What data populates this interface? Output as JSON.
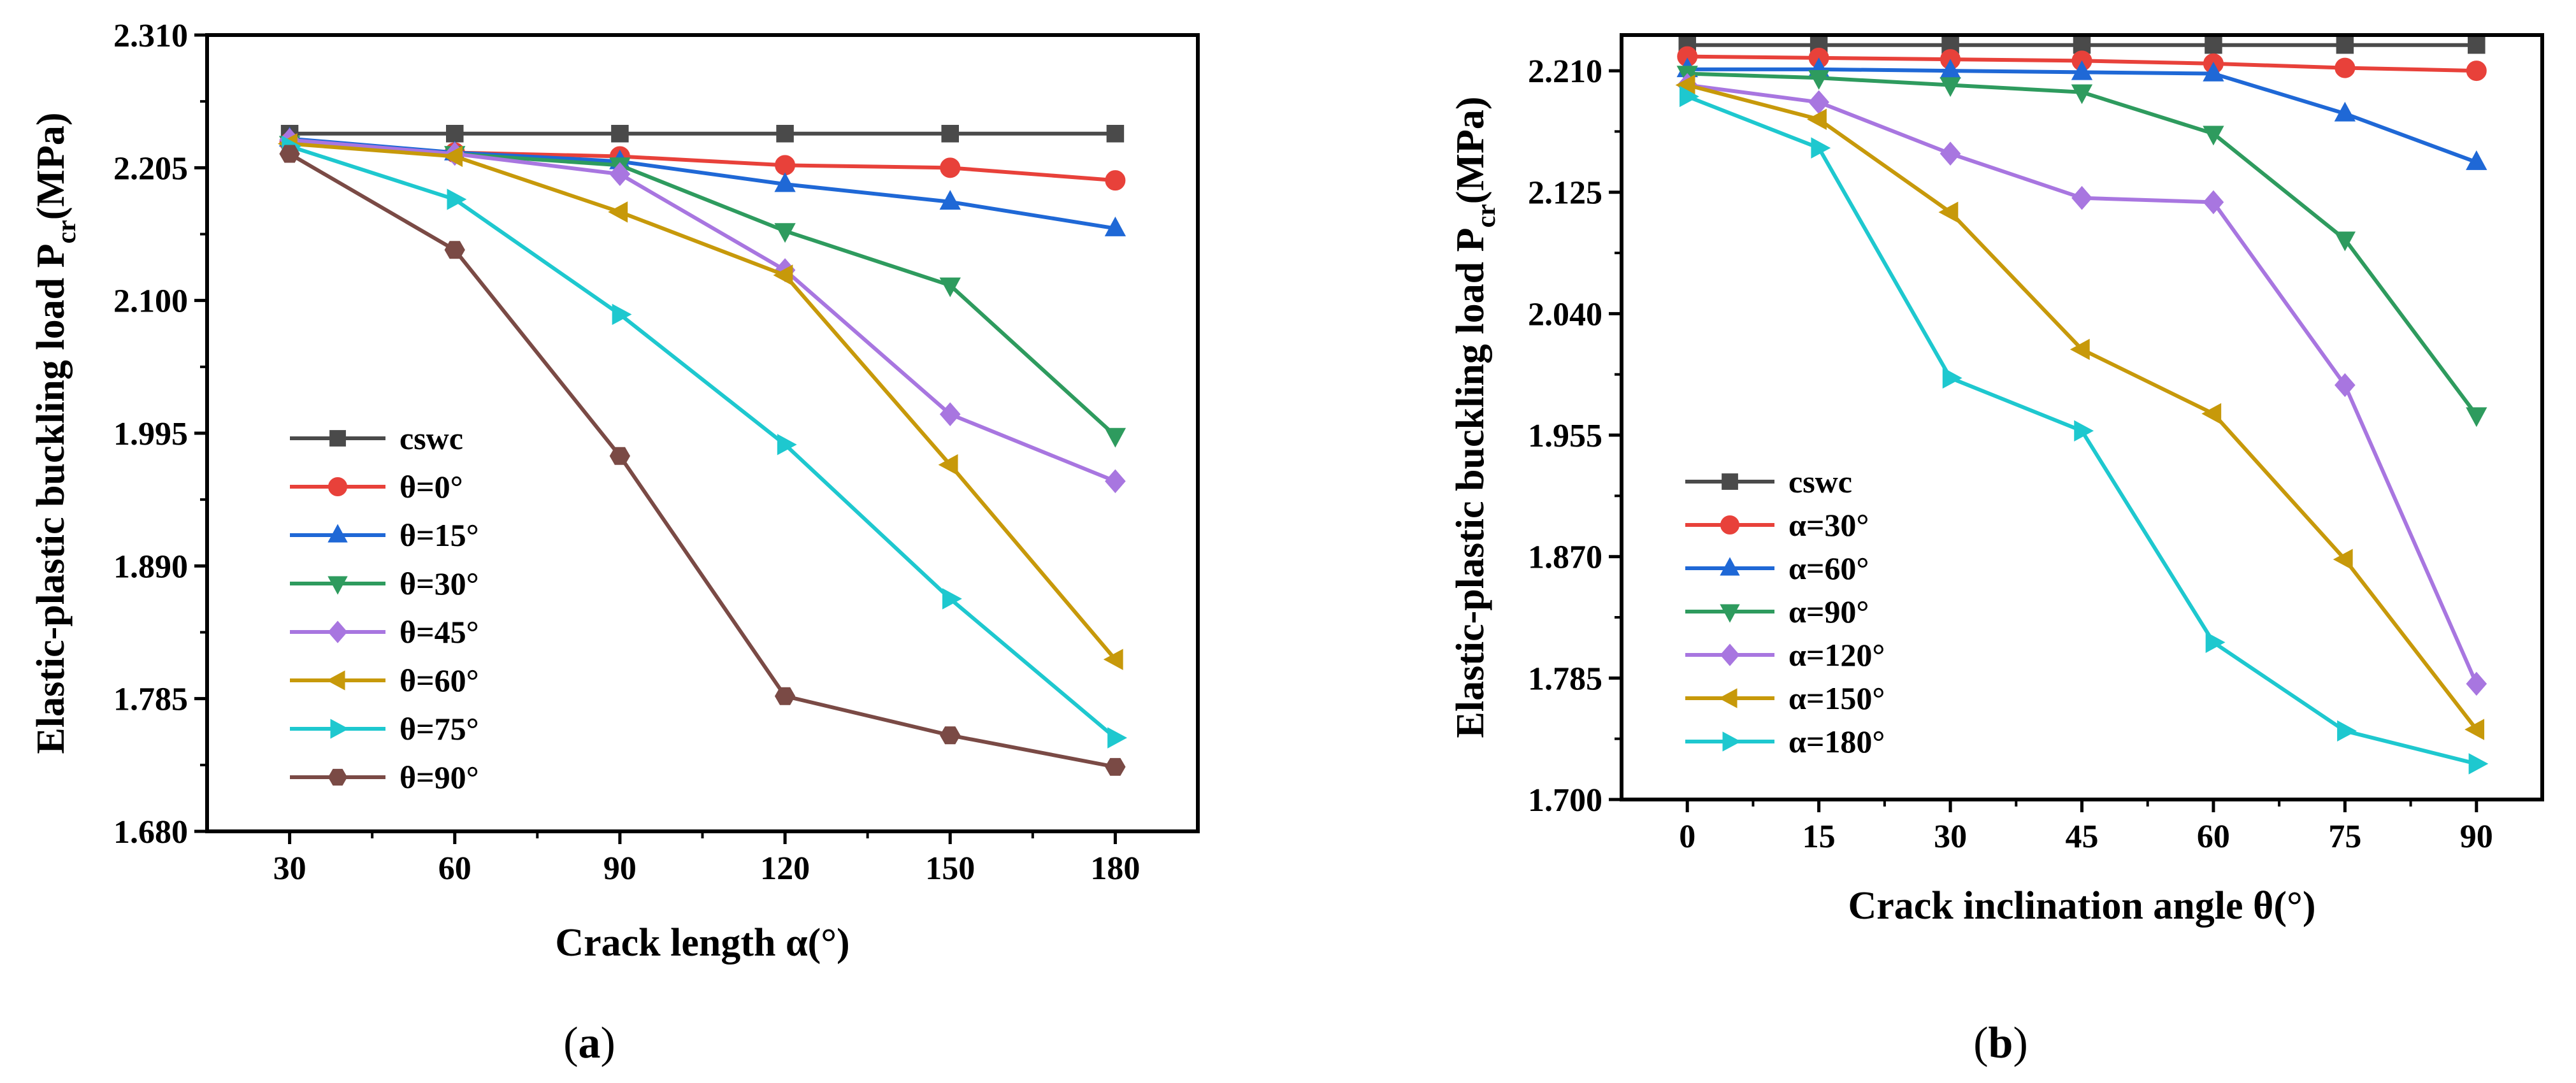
{
  "chart_data": [
    {
      "type": "line",
      "panel_label_prefix": "(",
      "panel_label_letter": "a",
      "panel_label_suffix": ")",
      "xlabel": "Crack length α(°)",
      "ylabel_main": "Elastic-plastic buckling load P",
      "ylabel_sub": "cr",
      "ylabel_unit": "(MPa)",
      "x": [
        30,
        60,
        90,
        120,
        150,
        180
      ],
      "xlim": [
        15,
        195
      ],
      "ylim": [
        1.68,
        2.31
      ],
      "xticks": [
        "30",
        "60",
        "90",
        "120",
        "150",
        "180"
      ],
      "yticks": [
        "1.680",
        "1.785",
        "1.890",
        "1.995",
        "2.100",
        "2.205",
        "2.310"
      ],
      "ytick_values": [
        1.68,
        1.785,
        1.89,
        1.995,
        2.1,
        2.205,
        2.31
      ],
      "legend_position": "lower-left",
      "series": [
        {
          "name": "cswc",
          "marker": "square",
          "color": "#4a4a4a",
          "values": [
            2.232,
            2.232,
            2.232,
            2.232,
            2.232,
            2.232
          ]
        },
        {
          "name": "θ=0°",
          "marker": "circle",
          "color": "#e8413a",
          "values": [
            2.225,
            2.217,
            2.214,
            2.207,
            2.205,
            2.195
          ]
        },
        {
          "name": "θ=15°",
          "marker": "triangle-up",
          "color": "#1f68d6",
          "values": [
            2.228,
            2.217,
            2.21,
            2.192,
            2.178,
            2.157
          ]
        },
        {
          "name": "θ=30°",
          "marker": "triangle-down",
          "color": "#2e9b5e",
          "values": [
            2.224,
            2.216,
            2.207,
            2.155,
            2.112,
            1.993
          ]
        },
        {
          "name": "θ=45°",
          "marker": "diamond",
          "color": "#a876e0",
          "values": [
            2.227,
            2.216,
            2.2,
            2.124,
            2.01,
            1.957
          ]
        },
        {
          "name": "θ=60°",
          "marker": "triangle-left",
          "color": "#c7990a",
          "values": [
            2.224,
            2.214,
            2.17,
            2.12,
            1.97,
            1.816
          ]
        },
        {
          "name": "θ=75°",
          "marker": "triangle-right",
          "color": "#1ec8cf",
          "values": [
            2.222,
            2.18,
            2.089,
            1.986,
            1.864,
            1.754
          ]
        },
        {
          "name": "θ=90°",
          "marker": "hexagon",
          "color": "#7a4a45",
          "values": [
            2.216,
            2.14,
            1.977,
            1.787,
            1.756,
            1.731
          ]
        }
      ]
    },
    {
      "type": "line",
      "panel_label_prefix": "(",
      "panel_label_letter": "b",
      "panel_label_suffix": ")",
      "xlabel": "Crack inclination angle θ(°)",
      "ylabel_main": "Elastic-plastic buckling load P",
      "ylabel_sub": "cr",
      "ylabel_unit": "(MPa)",
      "x": [
        0,
        15,
        30,
        45,
        60,
        75,
        90
      ],
      "xlim": [
        -7.5,
        97.5
      ],
      "ylim": [
        1.7,
        2.235
      ],
      "xticks": [
        "0",
        "15",
        "30",
        "45",
        "60",
        "75",
        "90"
      ],
      "yticks": [
        "1.700",
        "1.785",
        "1.870",
        "1.955",
        "2.040",
        "2.125",
        "2.210"
      ],
      "ytick_values": [
        1.7,
        1.785,
        1.87,
        1.955,
        2.04,
        2.125,
        2.21
      ],
      "legend_position": "lower-left",
      "series": [
        {
          "name": "cswc",
          "marker": "square",
          "color": "#4a4a4a",
          "values": [
            2.228,
            2.228,
            2.228,
            2.228,
            2.228,
            2.228,
            2.228
          ]
        },
        {
          "name": "α=30°",
          "marker": "circle",
          "color": "#e8413a",
          "values": [
            2.22,
            2.219,
            2.218,
            2.217,
            2.215,
            2.212,
            2.21
          ]
        },
        {
          "name": "α=60°",
          "marker": "triangle-up",
          "color": "#1f68d6",
          "values": [
            2.211,
            2.211,
            2.21,
            2.209,
            2.208,
            2.18,
            2.146
          ]
        },
        {
          "name": "α=90°",
          "marker": "triangle-down",
          "color": "#2e9b5e",
          "values": [
            2.208,
            2.205,
            2.2,
            2.195,
            2.166,
            2.092,
            1.969
          ]
        },
        {
          "name": "α=120°",
          "marker": "diamond",
          "color": "#a876e0",
          "values": [
            2.2,
            2.188,
            2.152,
            2.121,
            2.118,
            1.99,
            1.781
          ]
        },
        {
          "name": "α=150°",
          "marker": "triangle-left",
          "color": "#c7990a",
          "values": [
            2.2,
            2.176,
            2.111,
            2.015,
            1.97,
            1.868,
            1.749
          ]
        },
        {
          "name": "α=180°",
          "marker": "triangle-right",
          "color": "#1ec8cf",
          "values": [
            2.192,
            2.156,
            1.995,
            1.958,
            1.81,
            1.748,
            1.725
          ]
        }
      ]
    }
  ]
}
